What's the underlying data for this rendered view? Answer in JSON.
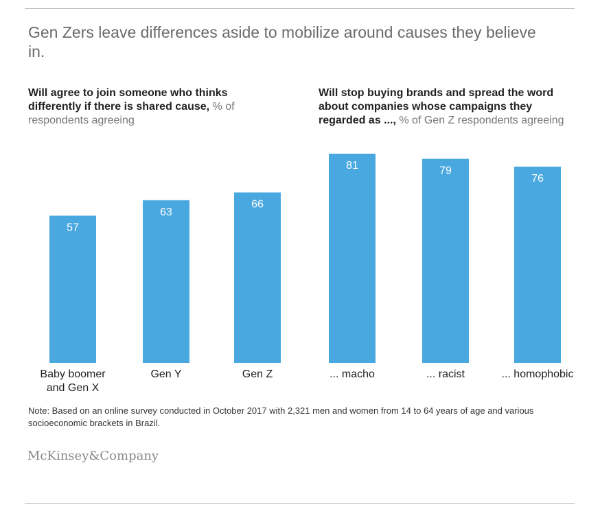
{
  "title": "Gen Zers leave differences aside to mobilize around causes they believe in.",
  "left_heading": {
    "bold": "Will agree to join someone who thinks differently if there is shared cause,",
    "rest": " % of respondents agreeing"
  },
  "right_heading": {
    "bold": "Will stop buying brands and spread the word about companies whose campaigns they regarded as ...,",
    "rest": " % of Gen Z respondents agreeing"
  },
  "note": "Note: Based on an online survey conducted in October 2017 with 2,321 men and women from 14 to 64 years of age and various socioeconomic brackets in Brazil.",
  "logo": "McKinsey&Company",
  "colors": {
    "bar": "#4aa8e0",
    "label_in_bar": "#ffffff"
  },
  "chart_data": {
    "type": "bar",
    "categories": [
      "Baby boomer and Gen X",
      "Gen Y",
      "Gen Z",
      "... macho",
      "... racist",
      "... homophobic"
    ],
    "values": [
      57,
      63,
      66,
      81,
      79,
      76
    ],
    "title": "",
    "xlabel": "",
    "ylabel": "",
    "ylim": [
      0,
      100
    ],
    "grid": false
  }
}
